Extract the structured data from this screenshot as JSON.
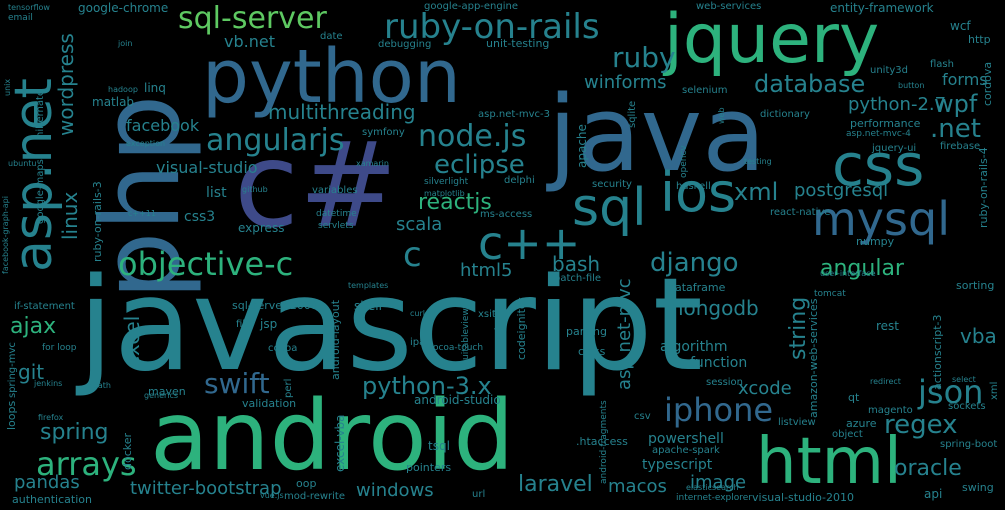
{
  "tags": {
    "javascript": "javascript",
    "java": "java",
    "python": "python",
    "csharp": "c#",
    "php": "php",
    "android": "android",
    "jquery": "jquery",
    "html": "html",
    "css": "css",
    "ios": "ios",
    "sql": "sql",
    "mysql": "mysql",
    "aspnet": "asp.net",
    "cpp": "c++",
    "c": "c",
    "ruby_on_rails": "ruby-on-rails",
    "sql_server": "sql-server",
    "objective_c": "objective-c",
    "nodejs": "node.js",
    "angularjs": "angularjs",
    "iphone": "iphone",
    "json": "json",
    "arrays": "arrays",
    "regex": "regex",
    "ruby": "ruby",
    "django": "django",
    "swift": "swift",
    "python3": "python-3.x",
    "database": "database",
    "dotnet": ".net",
    "wpf": "wpf",
    "xml": "xml",
    "eclipse": "eclipse",
    "reactjs": "reactjs",
    "angular": "angular",
    "laravel": "laravel",
    "oracle": "oracle",
    "windows": "windows",
    "vba": "vba",
    "mongodb": "mongodb",
    "string": "string",
    "excel": "excel",
    "spring": "spring",
    "ajax": "ajax",
    "pandas": "pandas",
    "git": "git",
    "bash": "bash",
    "postgresql": "postgresql",
    "multithreading": "multithreading",
    "linux": "linux",
    "wordpress": "wordpress",
    "visual_studio": "visual-studio",
    "facebook": "facebook",
    "twitter_bootstrap": "twitter-bootstrap",
    "html5": "html5",
    "scala": "scala",
    "aspnet_mvc": "asp.net-mvc",
    "python27": "python-2.7",
    "winforms": "winforms",
    "xcode": "xcode",
    "image": "image",
    "macos": "macos",
    "forms": "forms",
    "vbnet": "vb.net",
    "powershell": "powershell",
    "typescript": "typescript",
    "function": "function",
    "algorithm": "algorithm",
    "css3": "css3",
    "list": "list",
    "google_chrome": "google-chrome",
    "entity_framework": "entity-framework",
    "matlab": "matlab",
    "linq": "linq",
    "date": "date",
    "hibernate": "hibernate",
    "unit_testing": "unit-testing",
    "debugging": "debugging",
    "web_services": "web-services",
    "wcf": "wcf",
    "http": "http",
    "unity3d": "unity3d",
    "flash": "flash",
    "selenium": "selenium",
    "dictionary": "dictionary",
    "performance": "performance",
    "jquery_ui": "jquery-ui",
    "firebase": "firebase",
    "react_native": "react-native",
    "numpy": "numpy",
    "sorting": "sorting",
    "security": "security",
    "haskell": "haskell",
    "apache": "apache",
    "sqlite": "sqlite",
    "delphi": "delphi",
    "symfony": "symfony",
    "express": "express",
    "variables": "variables",
    "ms_access": "ms-access",
    "sql_server_2008": "sql-server-2008",
    "shell": "shell",
    "batch_file": "batch-file",
    "jsp": "jsp",
    "file": "file",
    "cocoa": "cocoa",
    "ipad": "ipad",
    "xsit": "xsit",
    "parsing": "parsing",
    "class": "class",
    "codeigniter": "codeigniter",
    "dataframe": "dataframe",
    "rest": "rest",
    "amazon_web_services": "amazon-web-services",
    "actionscript3": "actionscript-3",
    "azure": "azure",
    "qt": "qt",
    "sockets": "sockets",
    "magento": "magento",
    "object": "object",
    "spring_boot": "spring-boot",
    "swing": "swing",
    "api": "api",
    "visual_studio_2010": "visual-studio-2010",
    "internet_explorer": "internet-explorer",
    "htaccess": ".htaccess",
    "csv": "csv",
    "apache_spark": "apache-spark",
    "listview": "listview",
    "session": "session",
    "android_studio": "android-studio",
    "excel_vba": "excel-vba",
    "tsql": "tsql",
    "pointers": "pointers",
    "url": "url",
    "oop": "oop",
    "mod_rewrite": "mod-rewrite",
    "authentication": "authentication",
    "loops": "loops",
    "docker": "docker",
    "maven": "maven",
    "validation": "validation",
    "perl": "perl",
    "android_layout": "android-layout",
    "if_statement": "if-statement",
    "for_loop": "for loop",
    "spring_mvc": "spring-mvc",
    "google_maps": "google-maps",
    "ruby_on_rails_3": "ruby-on-rails-3",
    "ruby_on_rails_4": "ruby-on-rails-4",
    "cordova": "cordova",
    "google_app_engine": "google-app-engine",
    "aspnet_mvc_3": "asp.net-mvc-3",
    "aspnet_mvc_4": "asp.net-mvc-4",
    "opencv": "opencv",
    "silverlight": "silverlight",
    "datetime": "datetime",
    "servlets": "servlets",
    "email": "email",
    "tensorflow": "tensorflow",
    "unix": "unix",
    "join": "join",
    "hadoop": "hadoop",
    "exception": "exception",
    "ubuntu": "ubuntu",
    "xamarin": "xamarin",
    "github": "github",
    "cpp11": "c++11",
    "matplotlib": "matplotlib",
    "templates": "templates",
    "curl": "curl",
    "events": "events",
    "uitableview": "uitableview",
    "cocoa_touch": "cocoa-touch",
    "generics": "generics",
    "jenkins": "jenkins",
    "xpath": "xpath",
    "firefox": "firefox",
    "vuejs": "vue.js",
    "elasticsearch": "elasticsearch",
    "android_fragments": "android-fragments",
    "tomcat": "tomcat",
    "select": "select",
    "redirect": "redirect",
    "web": "web",
    "testing": "testing",
    "facebook_graph_api": "facebook-graph-api",
    "xml2": "xml",
    "animation": "animation",
    "user_interface": "user-interface",
    "button": "button"
  },
  "colors": {
    "background": "#000000",
    "palette": [
      "#2db27d",
      "#26828e",
      "#31688e",
      "#3e4a89",
      "#482878",
      "#1f9e89",
      "#5ec962"
    ]
  }
}
